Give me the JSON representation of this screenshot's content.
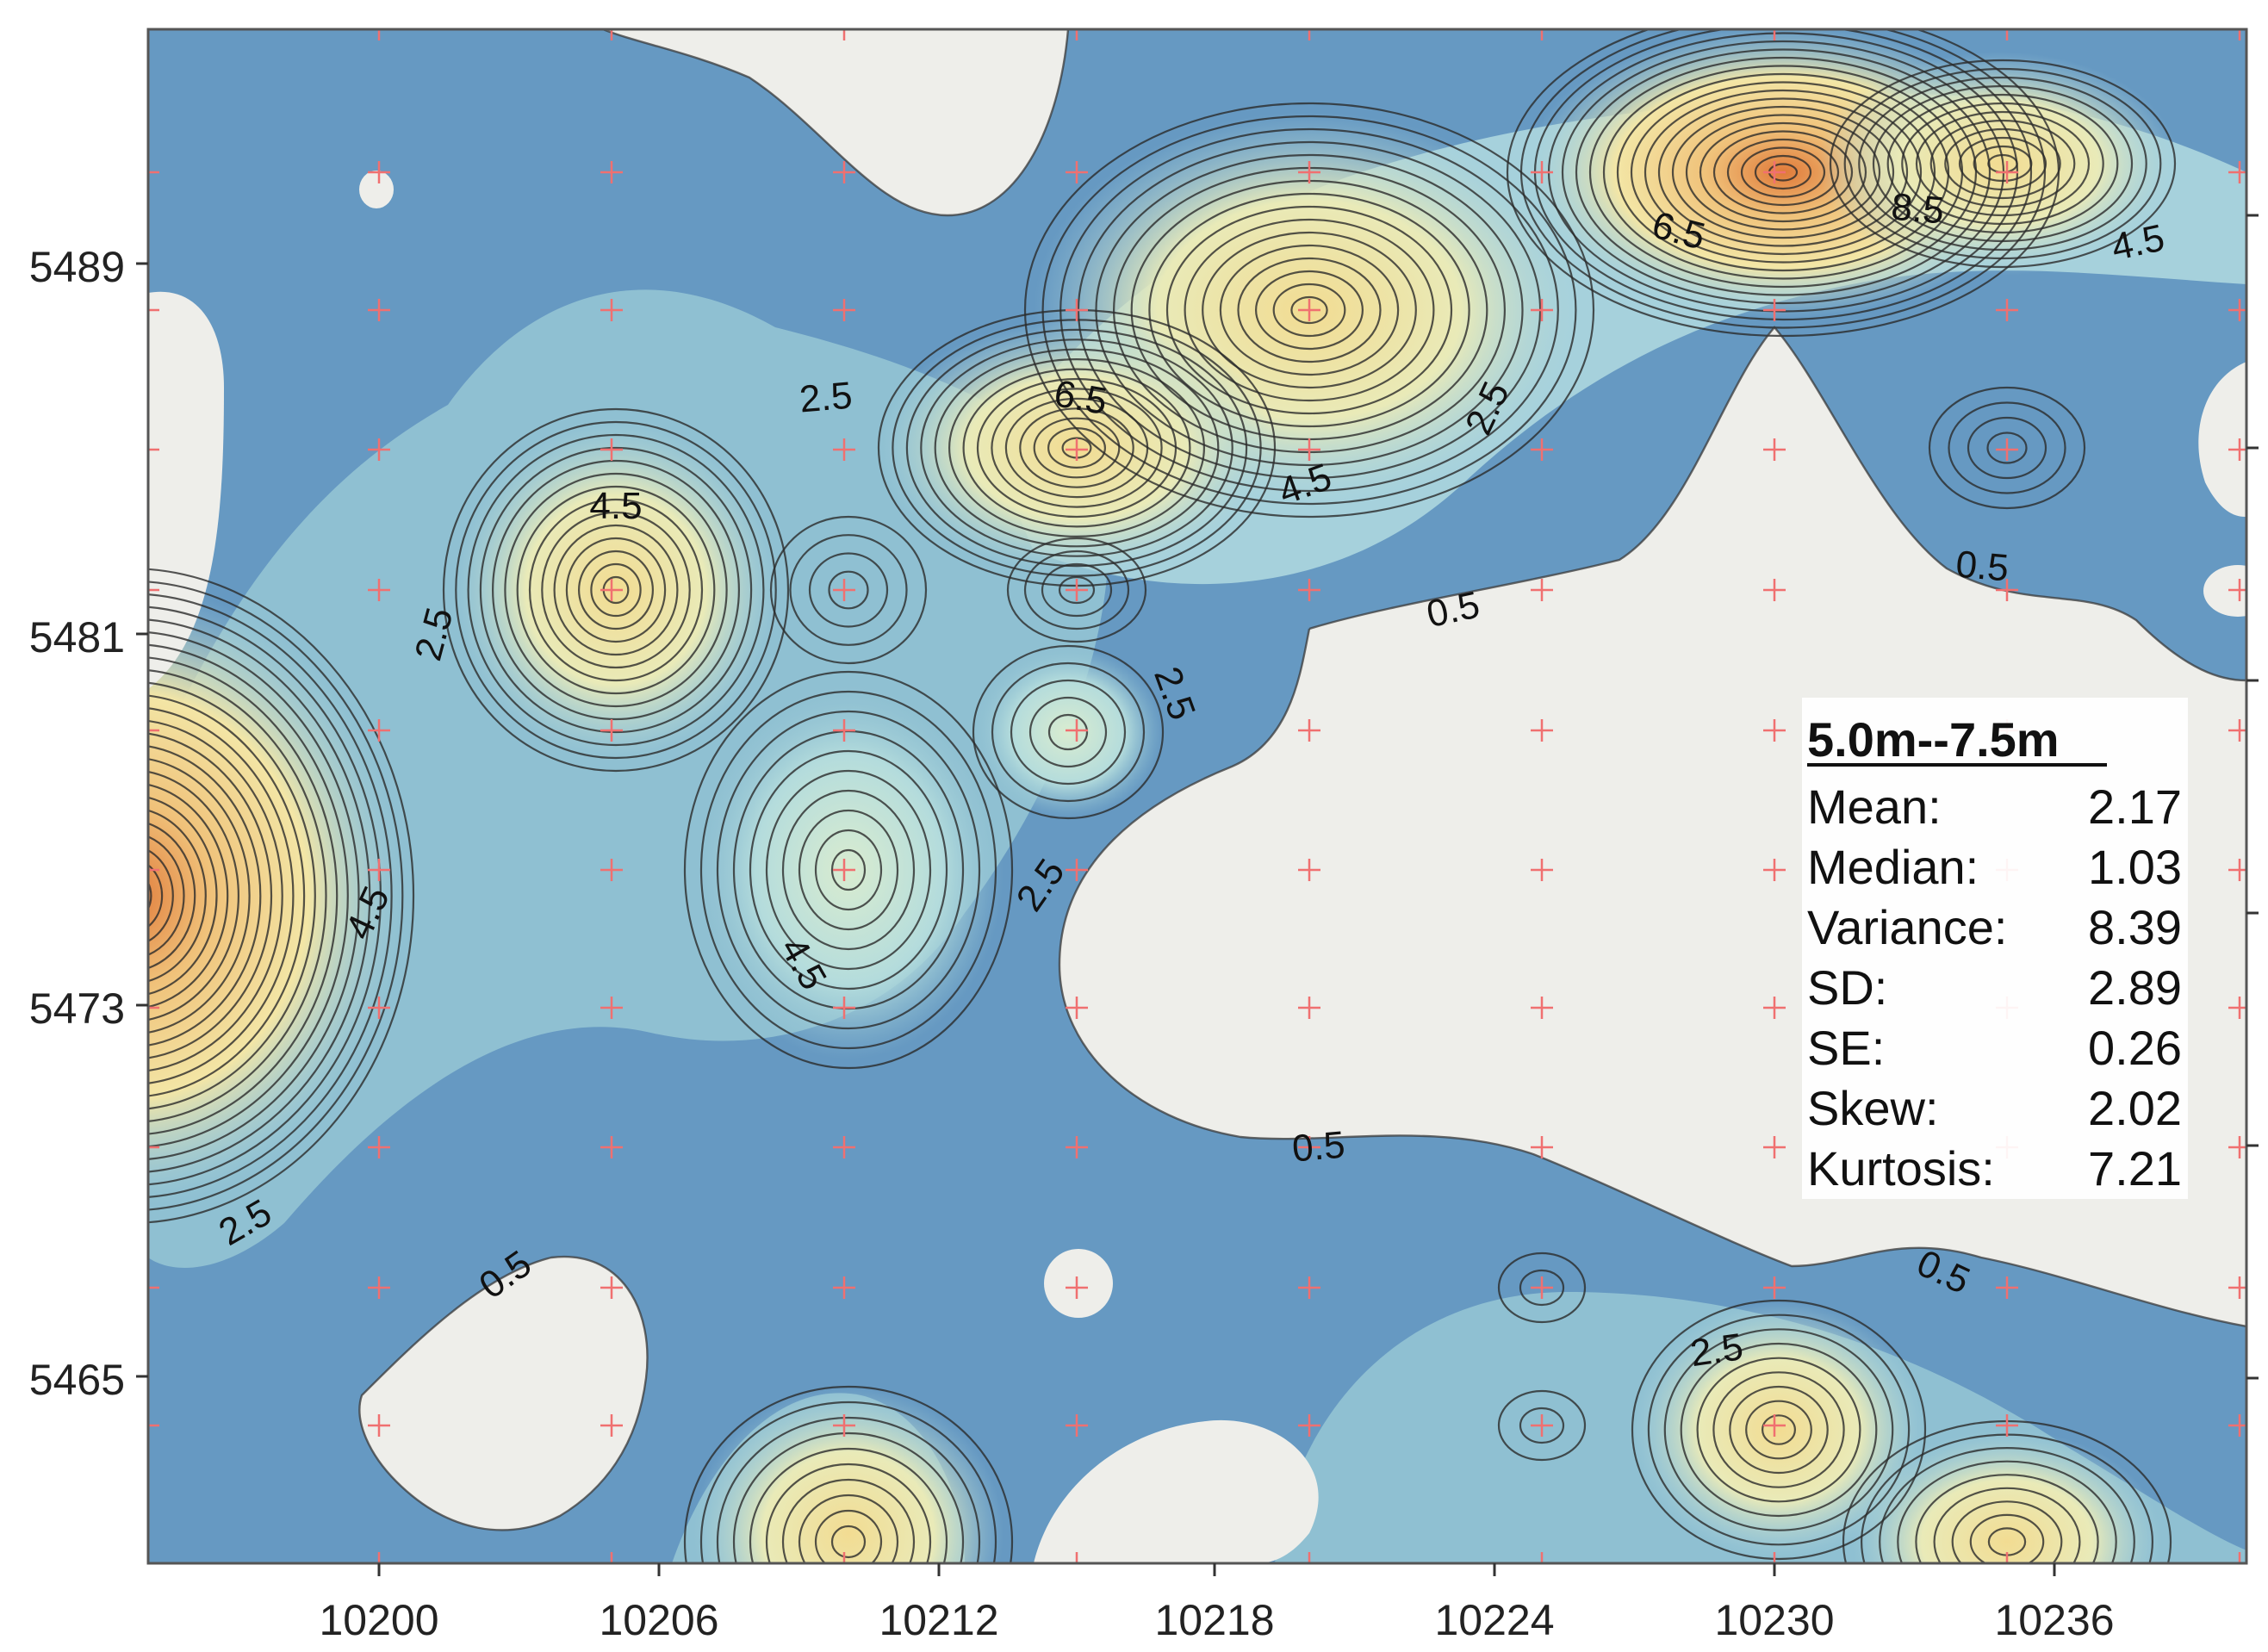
{
  "map": {
    "x_ticks": [
      "10200",
      "10206",
      "10212",
      "10218",
      "10224",
      "10230",
      "10236"
    ],
    "y_ticks": [
      "5489",
      "5481",
      "5473",
      "5465"
    ],
    "contour_labels": [
      {
        "text": "2.5",
        "pos": "top-left cluster"
      },
      {
        "text": "4.5",
        "pos": "left peak top"
      },
      {
        "text": "2.5",
        "pos": "left ring"
      },
      {
        "text": "6.5",
        "pos": "center peak"
      },
      {
        "text": "4.5",
        "pos": "center ridge"
      },
      {
        "text": "2.5",
        "pos": "ridge slope"
      },
      {
        "text": "6.5",
        "pos": "upper right"
      },
      {
        "text": "8.5",
        "pos": "upper right peak"
      },
      {
        "text": "4.5",
        "pos": "far right"
      },
      {
        "text": "0.5",
        "pos": "right boundary"
      },
      {
        "text": "0.5",
        "pos": "center boundary"
      },
      {
        "text": "2.5",
        "pos": "center lobe"
      },
      {
        "text": "2.5",
        "pos": "lower center"
      },
      {
        "text": "4.5",
        "pos": "lower peak"
      },
      {
        "text": "4.5",
        "pos": "left edge peak"
      },
      {
        "text": "2.5",
        "pos": "lower left"
      },
      {
        "text": "0.5",
        "pos": "lower left hole"
      },
      {
        "text": "0.5",
        "pos": "lower middle"
      },
      {
        "text": "0.5",
        "pos": "lower right"
      },
      {
        "text": "2.5",
        "pos": "lower right peak"
      }
    ],
    "colors": {
      "low": "#5e93bd",
      "mid": "#a8d3dd",
      "high": "#f3e6a6",
      "peak": "#e0602c",
      "empty": "#eeeeea",
      "grid_marker": "#f07070"
    }
  },
  "legend": {
    "title": "5.0m--7.5m",
    "rows": [
      {
        "label": "Mean:",
        "value": "2.17"
      },
      {
        "label": "Median:",
        "value": "1.03"
      },
      {
        "label": "Variance:",
        "value": "8.39"
      },
      {
        "label": "SD:",
        "value": "2.89"
      },
      {
        "label": "SE:",
        "value": "0.26"
      },
      {
        "label": "Skew:",
        "value": "2.02"
      },
      {
        "label": "Kurtosis:",
        "value": "7.21"
      }
    ]
  }
}
